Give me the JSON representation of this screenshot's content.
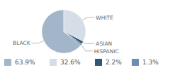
{
  "chart_data": {
    "type": "pie",
    "categories": [
      "BLACK",
      "WHITE",
      "ASIAN",
      "HISPANIC"
    ],
    "values": [
      63.9,
      32.6,
      2.2,
      1.3
    ],
    "value_labels": [
      "63.9%",
      "32.6%",
      "2.2%",
      "1.3%"
    ],
    "colors": [
      "#a3b5c9",
      "#d5dde7",
      "#2f5577",
      "#6d8db0"
    ],
    "legend": "bottom"
  }
}
